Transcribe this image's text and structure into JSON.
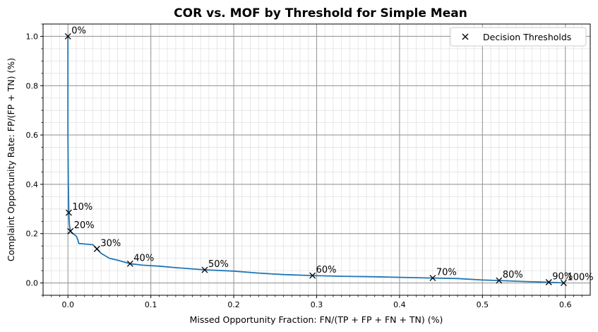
{
  "chart_data": {
    "type": "line",
    "title": "COR vs. MOF by Threshold for Simple Mean",
    "xlabel": "Missed Opportunity Fraction: FN/(TP + FP + FN + TN) (%)",
    "ylabel": "Complaint Opportunity Rate: FP/(FP + TN) (%)",
    "xlim": [
      -0.03,
      0.63
    ],
    "ylim": [
      -0.05,
      1.05
    ],
    "xticks": [
      "0.0",
      "0.1",
      "0.2",
      "0.3",
      "0.4",
      "0.5",
      "0.6"
    ],
    "yticks": [
      "0.0",
      "0.2",
      "0.4",
      "0.6",
      "0.8",
      "1.0"
    ],
    "grid": true,
    "legend": {
      "position": "upper-right",
      "entries": [
        "Decision Thresholds"
      ]
    },
    "curve": [
      [
        0.0,
        1.0
      ],
      [
        0.0,
        0.6
      ],
      [
        0.0005,
        0.4
      ],
      [
        0.001,
        0.3
      ],
      [
        0.001,
        0.285
      ],
      [
        0.0015,
        0.25
      ],
      [
        0.002,
        0.23
      ],
      [
        0.003,
        0.21
      ],
      [
        0.006,
        0.2
      ],
      [
        0.01,
        0.19
      ],
      [
        0.012,
        0.175
      ],
      [
        0.013,
        0.16
      ],
      [
        0.02,
        0.158
      ],
      [
        0.03,
        0.155
      ],
      [
        0.035,
        0.138
      ],
      [
        0.04,
        0.12
      ],
      [
        0.045,
        0.11
      ],
      [
        0.05,
        0.1
      ],
      [
        0.06,
        0.092
      ],
      [
        0.075,
        0.078
      ],
      [
        0.09,
        0.072
      ],
      [
        0.11,
        0.068
      ],
      [
        0.13,
        0.062
      ],
      [
        0.165,
        0.053
      ],
      [
        0.2,
        0.048
      ],
      [
        0.23,
        0.04
      ],
      [
        0.26,
        0.034
      ],
      [
        0.295,
        0.03
      ],
      [
        0.33,
        0.027
      ],
      [
        0.37,
        0.025
      ],
      [
        0.41,
        0.022
      ],
      [
        0.44,
        0.02
      ],
      [
        0.47,
        0.018
      ],
      [
        0.5,
        0.012
      ],
      [
        0.52,
        0.01
      ],
      [
        0.55,
        0.006
      ],
      [
        0.58,
        0.003
      ],
      [
        0.598,
        0.0
      ]
    ],
    "points": [
      {
        "label": "0%",
        "x": 0.0,
        "y": 1.0
      },
      {
        "label": "10%",
        "x": 0.001,
        "y": 0.285
      },
      {
        "label": "20%",
        "x": 0.003,
        "y": 0.21
      },
      {
        "label": "30%",
        "x": 0.035,
        "y": 0.138
      },
      {
        "label": "40%",
        "x": 0.075,
        "y": 0.078
      },
      {
        "label": "50%",
        "x": 0.165,
        "y": 0.053
      },
      {
        "label": "60%",
        "x": 0.295,
        "y": 0.03
      },
      {
        "label": "70%",
        "x": 0.44,
        "y": 0.02
      },
      {
        "label": "80%",
        "x": 0.52,
        "y": 0.01
      },
      {
        "label": "90%",
        "x": 0.58,
        "y": 0.003
      },
      {
        "label": "100%",
        "x": 0.598,
        "y": 0.0
      }
    ],
    "colors": {
      "line": "#1f77b4",
      "marker": "#000000",
      "major_grid": "#9a9a9a",
      "minor_grid": "#e2e2e2"
    }
  }
}
